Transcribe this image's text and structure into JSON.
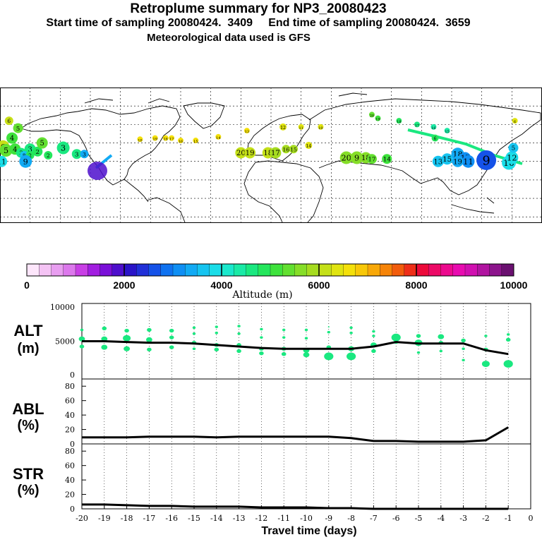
{
  "header": {
    "title": "Retroplume summary for NP3_20080423",
    "sampling": "Start time of sampling 20080424.  3409     End time of sampling 20080424.  3659",
    "met": "Meteorological data used is GFS"
  },
  "colorbar": {
    "ticks": [
      "0",
      "2000",
      "4000",
      "6000",
      "8000",
      "10000"
    ],
    "label": "Altitude (m)",
    "colors": [
      "#fde6fb",
      "#f4c3f4",
      "#e89ef0",
      "#dc78ec",
      "#c83fe5",
      "#a21ee0",
      "#7a10d8",
      "#4e0fcc",
      "#2a14c8",
      "#2130d8",
      "#1552e8",
      "#0f72f0",
      "#0f8ff4",
      "#12aaf4",
      "#16c4f0",
      "#1adde8",
      "#1ae8cc",
      "#1aeaa6",
      "#1ae880",
      "#24e65c",
      "#3ee23c",
      "#62e030",
      "#86de28",
      "#a6dc20",
      "#c4e018",
      "#e0e410",
      "#f4e00a",
      "#f8c808",
      "#f8a808",
      "#f68408",
      "#f25c0c",
      "#ee2e18",
      "#ec0a3a",
      "#ec0a66",
      "#ec0a8e",
      "#e80cb0",
      "#d010b0",
      "#b014a0",
      "#8c148c",
      "#6a1070"
    ]
  },
  "map": {
    "labels": [
      {
        "t": "6",
        "lon": -174,
        "lat": 48,
        "c": "#c8e018",
        "s": 6
      },
      {
        "t": "5",
        "lon": -168,
        "lat": 42,
        "c": "#62e030",
        "s": 7
      },
      {
        "t": "4",
        "lon": -172,
        "lat": 34,
        "c": "#3ee23c",
        "s": 8
      },
      {
        "t": "6",
        "lon": -178,
        "lat": 27,
        "c": "#c8e018",
        "s": 9
      },
      {
        "t": "5",
        "lon": -176,
        "lat": 24,
        "c": "#62e030",
        "s": 9
      },
      {
        "t": "4",
        "lon": -170,
        "lat": 25,
        "c": "#3ee23c",
        "s": 8
      },
      {
        "t": "3",
        "lon": -160,
        "lat": 25,
        "c": "#1ae880",
        "s": 8
      },
      {
        "t": "2",
        "lon": -155,
        "lat": 23,
        "c": "#24e65c",
        "s": 7
      },
      {
        "t": "3",
        "lon": -166,
        "lat": 22,
        "c": "#1ae880",
        "s": 7
      },
      {
        "t": "8",
        "lon": -164,
        "lat": 20,
        "c": "#16c4f0",
        "s": 6
      },
      {
        "t": "2",
        "lon": -160,
        "lat": 20,
        "c": "#24e65c",
        "s": 6
      },
      {
        "t": "11",
        "lon": -179,
        "lat": 15,
        "c": "#1adde8",
        "s": 8
      },
      {
        "t": "9",
        "lon": -163,
        "lat": 15,
        "c": "#12aaf4",
        "s": 9
      },
      {
        "t": "5",
        "lon": -152,
        "lat": 30,
        "c": "#62e030",
        "s": 8
      },
      {
        "t": "2",
        "lon": -148,
        "lat": 20,
        "c": "#24e65c",
        "s": 6
      },
      {
        "t": "3",
        "lon": -138,
        "lat": 26,
        "c": "#1ae880",
        "s": 9
      },
      {
        "t": "3",
        "lon": -129,
        "lat": 21,
        "c": "#1ae880",
        "s": 7
      },
      {
        "t": "3",
        "lon": -124,
        "lat": 21,
        "c": "#12aaf4",
        "s": 6
      },
      {
        "t": "10",
        "lon": -87,
        "lat": 33,
        "c": "#f4e00a",
        "s": 4
      },
      {
        "t": "19",
        "lon": -77,
        "lat": 34,
        "c": "#f4e00a",
        "s": 4
      },
      {
        "t": "18",
        "lon": -70,
        "lat": 34,
        "c": "#f4e00a",
        "s": 4
      },
      {
        "t": "17",
        "lon": -66,
        "lat": 34,
        "c": "#f4e00a",
        "s": 4
      },
      {
        "t": "16",
        "lon": -60,
        "lat": 32,
        "c": "#f4e00a",
        "s": 4
      },
      {
        "t": "15",
        "lon": -50,
        "lat": 32,
        "c": "#f4e00a",
        "s": 4
      },
      {
        "t": "14",
        "lon": -35,
        "lat": 35,
        "c": "#f4e00a",
        "s": 4
      },
      {
        "t": "13",
        "lon": -16,
        "lat": 40,
        "c": "#f4e00a",
        "s": 4
      },
      {
        "t": "12",
        "lon": 8,
        "lat": 43,
        "c": "#e0e410",
        "s": 5
      },
      {
        "t": "11",
        "lon": 20,
        "lat": 43,
        "c": "#e0e410",
        "s": 4
      },
      {
        "t": "10",
        "lon": 33,
        "lat": 43,
        "c": "#e0e410",
        "s": 4
      },
      {
        "t": "20",
        "lon": -20,
        "lat": 22,
        "c": "#c4e018",
        "s": 8
      },
      {
        "t": "19",
        "lon": -14,
        "lat": 22,
        "c": "#c4e018",
        "s": 8
      },
      {
        "t": "18",
        "lon": -2,
        "lat": 22,
        "c": "#c4e018",
        "s": 8
      },
      {
        "t": "17",
        "lon": 3,
        "lat": 22,
        "c": "#a6dc20",
        "s": 8
      },
      {
        "t": "16",
        "lon": 10,
        "lat": 25,
        "c": "#a6dc20",
        "s": 6
      },
      {
        "t": "15",
        "lon": 15,
        "lat": 25,
        "c": "#a6dc20",
        "s": 6
      },
      {
        "t": "14",
        "lon": 25,
        "lat": 28,
        "c": "#e0e410",
        "s": 5
      },
      {
        "t": "20",
        "lon": 50,
        "lat": 18,
        "c": "#86de28",
        "s": 9
      },
      {
        "t": "9",
        "lon": 57,
        "lat": 18,
        "c": "#86de28",
        "s": 9
      },
      {
        "t": "18",
        "lon": 63,
        "lat": 18,
        "c": "#86de28",
        "s": 8
      },
      {
        "t": "17",
        "lon": 67,
        "lat": 17,
        "c": "#62e030",
        "s": 7
      },
      {
        "t": "14",
        "lon": 77,
        "lat": 17,
        "c": "#3ee23c",
        "s": 7
      },
      {
        "t": "20",
        "lon": 67,
        "lat": 53,
        "c": "#62e030",
        "s": 4
      },
      {
        "t": "19",
        "lon": 71,
        "lat": 50,
        "c": "#3ee23c",
        "s": 4
      },
      {
        "t": "18",
        "lon": 85,
        "lat": 48,
        "c": "#24e65c",
        "s": 4
      },
      {
        "t": "17",
        "lon": 97,
        "lat": 45,
        "c": "#1ae880",
        "s": 4
      },
      {
        "t": "16",
        "lon": 108,
        "lat": 43,
        "c": "#1aeaa6",
        "s": 4
      },
      {
        "t": "15",
        "lon": 117,
        "lat": 40,
        "c": "#1aeaa6",
        "s": 4
      },
      {
        "t": "6",
        "lon": 109,
        "lat": 34,
        "c": "#24e65c",
        "s": 5
      },
      {
        "t": "13",
        "lon": 111,
        "lat": 15,
        "c": "#16c4f0",
        "s": 8
      },
      {
        "t": "15",
        "lon": 117,
        "lat": 17,
        "c": "#16c4f0",
        "s": 8
      },
      {
        "t": "18",
        "lon": 124,
        "lat": 21,
        "c": "#12aaf4",
        "s": 9
      },
      {
        "t": "17",
        "lon": 129,
        "lat": 18,
        "c": "#0f8ff4",
        "s": 8
      },
      {
        "t": "11",
        "lon": 131,
        "lat": 15,
        "c": "#0f8ff4",
        "s": 9
      },
      {
        "t": "19",
        "lon": 124,
        "lat": 15,
        "c": "#12aaf4",
        "s": 8
      },
      {
        "t": "9",
        "lon": 143,
        "lat": 16,
        "c": "#1552e8",
        "s": 14
      },
      {
        "t": "10",
        "lon": 158,
        "lat": 14,
        "c": "#1adde8",
        "s": 10
      },
      {
        "t": "12",
        "lon": 160,
        "lat": 18,
        "c": "#1adde8",
        "s": 9
      },
      {
        "t": "5",
        "lon": 161,
        "lat": 26,
        "c": "#16c4f0",
        "s": 7
      },
      {
        "t": "6",
        "lon": 162,
        "lat": 48,
        "c": "#e0e410",
        "s": 4
      }
    ]
  },
  "chart_data": [
    {
      "type": "scatter",
      "title": "ALT (m)",
      "panel_label": "ALT",
      "panel_unit": "(m)",
      "xlim": [
        -20,
        0
      ],
      "ylim": [
        0,
        10000
      ],
      "yticks": [
        "10000",
        "5000",
        "0"
      ],
      "series": [
        {
          "name": "mean altitude",
          "x": [
            -20,
            -19,
            -18,
            -17,
            -16,
            -15,
            -14,
            -13,
            -12,
            -11,
            -10,
            -9,
            -8,
            -7,
            -6,
            -5,
            -4,
            -3,
            -2,
            -1
          ],
          "values": [
            5000,
            5000,
            4900,
            4800,
            4800,
            4700,
            4500,
            4300,
            4100,
            4000,
            4000,
            4000,
            4000,
            4300,
            4900,
            4700,
            4700,
            4700,
            3800,
            3300
          ]
        },
        {
          "name": "plume clusters",
          "points": [
            {
              "x": -20,
              "y": 6500,
              "s": 2
            },
            {
              "x": -20,
              "y": 5300,
              "s": 4
            },
            {
              "x": -20,
              "y": 4300,
              "s": 3
            },
            {
              "x": -19,
              "y": 6700,
              "s": 3
            },
            {
              "x": -19,
              "y": 5300,
              "s": 4
            },
            {
              "x": -19,
              "y": 4200,
              "s": 4
            },
            {
              "x": -18,
              "y": 6400,
              "s": 3
            },
            {
              "x": -18,
              "y": 5400,
              "s": 5
            },
            {
              "x": -18,
              "y": 4000,
              "s": 4
            },
            {
              "x": -17,
              "y": 6500,
              "s": 3
            },
            {
              "x": -17,
              "y": 5200,
              "s": 4
            },
            {
              "x": -17,
              "y": 3900,
              "s": 3
            },
            {
              "x": -16,
              "y": 6400,
              "s": 3
            },
            {
              "x": -16,
              "y": 5500,
              "s": 3
            },
            {
              "x": -16,
              "y": 4200,
              "s": 3
            },
            {
              "x": -15,
              "y": 6800,
              "s": 2
            },
            {
              "x": -15,
              "y": 6000,
              "s": 2
            },
            {
              "x": -15,
              "y": 4800,
              "s": 3
            },
            {
              "x": -15,
              "y": 4000,
              "s": 2
            },
            {
              "x": -14,
              "y": 6900,
              "s": 2
            },
            {
              "x": -14,
              "y": 6100,
              "s": 2
            },
            {
              "x": -14,
              "y": 4500,
              "s": 3
            },
            {
              "x": -14,
              "y": 3900,
              "s": 3
            },
            {
              "x": -13,
              "y": 7000,
              "s": 2
            },
            {
              "x": -13,
              "y": 6000,
              "s": 2
            },
            {
              "x": -13,
              "y": 4500,
              "s": 3
            },
            {
              "x": -13,
              "y": 3700,
              "s": 3
            },
            {
              "x": -12,
              "y": 6600,
              "s": 2
            },
            {
              "x": -12,
              "y": 5500,
              "s": 2
            },
            {
              "x": -12,
              "y": 4000,
              "s": 3
            },
            {
              "x": -12,
              "y": 3400,
              "s": 3
            },
            {
              "x": -11,
              "y": 6500,
              "s": 2
            },
            {
              "x": -11,
              "y": 5500,
              "s": 2
            },
            {
              "x": -11,
              "y": 4000,
              "s": 3
            },
            {
              "x": -11,
              "y": 3300,
              "s": 3
            },
            {
              "x": -10,
              "y": 6500,
              "s": 2
            },
            {
              "x": -10,
              "y": 5400,
              "s": 2
            },
            {
              "x": -10,
              "y": 3800,
              "s": 4
            },
            {
              "x": -10,
              "y": 3200,
              "s": 4
            },
            {
              "x": -9,
              "y": 6900,
              "s": 1
            },
            {
              "x": -9,
              "y": 6200,
              "s": 2
            },
            {
              "x": -9,
              "y": 4200,
              "s": 3
            },
            {
              "x": -9,
              "y": 3000,
              "s": 6
            },
            {
              "x": -8,
              "y": 6800,
              "s": 2
            },
            {
              "x": -8,
              "y": 6100,
              "s": 2
            },
            {
              "x": -8,
              "y": 4000,
              "s": 4
            },
            {
              "x": -8,
              "y": 3000,
              "s": 6
            },
            {
              "x": -7,
              "y": 6300,
              "s": 2
            },
            {
              "x": -7,
              "y": 5700,
              "s": 2
            },
            {
              "x": -7,
              "y": 4500,
              "s": 4
            },
            {
              "x": -7,
              "y": 3700,
              "s": 3
            },
            {
              "x": -6,
              "y": 5500,
              "s": 6
            },
            {
              "x": -6,
              "y": 4900,
              "s": 3
            },
            {
              "x": -5,
              "y": 5700,
              "s": 3
            },
            {
              "x": -5,
              "y": 4800,
              "s": 5
            },
            {
              "x": -5,
              "y": 3500,
              "s": 2
            },
            {
              "x": -4,
              "y": 5600,
              "s": 4
            },
            {
              "x": -4,
              "y": 4800,
              "s": 3
            },
            {
              "x": -4,
              "y": 3700,
              "s": 2
            },
            {
              "x": -3,
              "y": 5100,
              "s": 3
            },
            {
              "x": -3,
              "y": 4000,
              "s": 2
            },
            {
              "x": -3,
              "y": 2500,
              "s": 2
            },
            {
              "x": -2,
              "y": 5700,
              "s": 2
            },
            {
              "x": -2,
              "y": 3900,
              "s": 3
            },
            {
              "x": -2,
              "y": 2000,
              "s": 5
            },
            {
              "x": -1,
              "y": 5900,
              "s": 2
            },
            {
              "x": -1,
              "y": 5200,
              "s": 3
            },
            {
              "x": -1,
              "y": 2000,
              "s": 6
            }
          ]
        }
      ]
    },
    {
      "type": "line",
      "title": "ABL (%)",
      "panel_label": "ABL",
      "panel_unit": "(%)",
      "xlim": [
        -20,
        0
      ],
      "ylim": [
        0,
        90
      ],
      "yticks": [
        "80",
        "60",
        "40",
        "20",
        "0"
      ],
      "x": [
        -20,
        -19,
        -18,
        -17,
        -16,
        -15,
        -14,
        -13,
        -12,
        -11,
        -10,
        -9,
        -8,
        -7,
        -6,
        -5,
        -4,
        -3,
        -2,
        -1
      ],
      "values": [
        9,
        9,
        9,
        10,
        10,
        10,
        9,
        10,
        10,
        10,
        10,
        10,
        8,
        4,
        4,
        3,
        3,
        3,
        5,
        23
      ]
    },
    {
      "type": "line",
      "title": "STR (%)",
      "panel_label": "STR",
      "panel_unit": "(%)",
      "xlim": [
        -20,
        0
      ],
      "ylim": [
        0,
        90
      ],
      "yticks": [
        "80",
        "60",
        "40",
        "20",
        "0"
      ],
      "x": [
        -20,
        -19,
        -18,
        -17,
        -16,
        -15,
        -14,
        -13,
        -12,
        -11,
        -10,
        -9,
        -8,
        -7,
        -6,
        -5,
        -4,
        -3,
        -2,
        -1
      ],
      "values": [
        6,
        6,
        5,
        4,
        4,
        3,
        3,
        3,
        2,
        2,
        2,
        1,
        1,
        0,
        0,
        0,
        0,
        0,
        0,
        0
      ]
    }
  ],
  "xaxis": {
    "ticks": [
      "-20",
      "-19",
      "-18",
      "-17",
      "-16",
      "-15",
      "-14",
      "-13",
      "-12",
      "-11",
      "-10",
      "-9",
      "-8",
      "-7",
      "-6",
      "-5",
      "-4",
      "-3",
      "-2",
      "-1",
      "0"
    ],
    "label": "Travel time (days)"
  },
  "colors": {
    "plume": "#1ae880",
    "line": "#000000"
  }
}
